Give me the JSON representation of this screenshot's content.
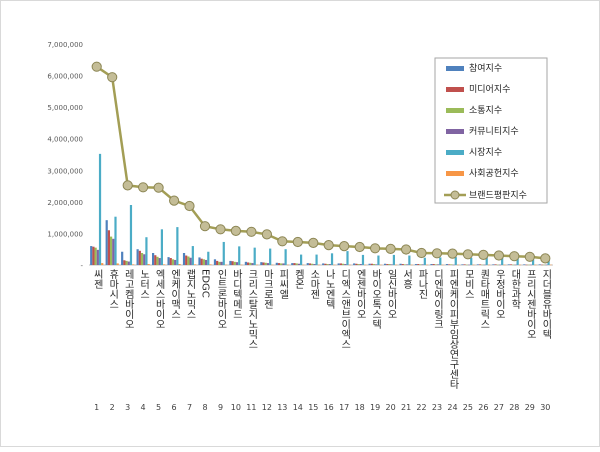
{
  "chart_data": {
    "type": "bar",
    "categories": [
      "씨젠",
      "휴마시스",
      "레고켐바이오",
      "노터스",
      "엑세스바이오",
      "엔케이맥스",
      "랩지노믹스",
      "EDGC",
      "인트론바이오",
      "바디텍메드",
      "크리스탈지노믹스",
      "마크로젠",
      "피씨엘",
      "켐온",
      "소마젠",
      "나노엔텍",
      "디엑스앤브이엑스",
      "엔젠바이오",
      "바이오톡스텍",
      "일신바이오",
      "서흥",
      "파나진",
      "디엔에이링크",
      "피엔케이피부임상연구센타",
      "모비스",
      "퀀타매트릭스",
      "우정바이오",
      "대한과학",
      "프리시젠바이오",
      "지더블유바이텍"
    ],
    "ranks": [
      "1",
      "2",
      "3",
      "4",
      "5",
      "6",
      "7",
      "8",
      "9",
      "10",
      "11",
      "12",
      "13",
      "14",
      "15",
      "16",
      "17",
      "18",
      "19",
      "20",
      "21",
      "22",
      "23",
      "24",
      "25",
      "26",
      "27",
      "28",
      "29",
      "30"
    ],
    "series": [
      {
        "name": "참여지수",
        "color": "#4F81BD",
        "values": [
          600000,
          1420000,
          420000,
          500000,
          380000,
          250000,
          380000,
          240000,
          180000,
          130000,
          100000,
          90000,
          70000,
          60000,
          60000,
          50000,
          50000,
          50000,
          40000,
          40000,
          40000,
          30000,
          30000,
          30000,
          20000,
          20000,
          20000,
          20000,
          20000,
          20000
        ]
      },
      {
        "name": "미디어지수",
        "color": "#C0504D",
        "values": [
          580000,
          1100000,
          150000,
          450000,
          310000,
          220000,
          300000,
          200000,
          130000,
          120000,
          80000,
          80000,
          60000,
          60000,
          50000,
          40000,
          50000,
          40000,
          40000,
          30000,
          30000,
          30000,
          30000,
          20000,
          20000,
          20000,
          20000,
          20000,
          10000,
          10000
        ]
      },
      {
        "name": "소통지수",
        "color": "#9BBB59",
        "values": [
          550000,
          900000,
          130000,
          380000,
          260000,
          180000,
          270000,
          180000,
          100000,
          100000,
          70000,
          70000,
          50000,
          50000,
          40000,
          30000,
          40000,
          30000,
          30000,
          30000,
          20000,
          20000,
          20000,
          20000,
          10000,
          10000,
          10000,
          10000,
          10000,
          10000
        ]
      },
      {
        "name": "커뮤니티지수",
        "color": "#8064A2",
        "values": [
          480000,
          830000,
          110000,
          340000,
          220000,
          160000,
          230000,
          160000,
          100000,
          90000,
          60000,
          60000,
          50000,
          40000,
          30000,
          30000,
          30000,
          30000,
          20000,
          20000,
          20000,
          20000,
          20000,
          10000,
          10000,
          10000,
          10000,
          10000,
          10000,
          10000
        ]
      },
      {
        "name": "시장지수",
        "color": "#4BACC6",
        "values": [
          3520000,
          1530000,
          1900000,
          880000,
          1130000,
          1200000,
          600000,
          420000,
          730000,
          590000,
          550000,
          520000,
          500000,
          330000,
          330000,
          370000,
          440000,
          320000,
          300000,
          320000,
          300000,
          230000,
          240000,
          250000,
          230000,
          240000,
          230000,
          240000,
          210000,
          220000
        ]
      },
      {
        "name": "사회공헌지수",
        "color": "#F79646",
        "values": [
          60000,
          50000,
          20000,
          30000,
          20000,
          30000,
          20000,
          20000,
          10000,
          10000,
          10000,
          10000,
          10000,
          10000,
          10000,
          10000,
          10000,
          10000,
          10000,
          10000,
          10000,
          10000,
          10000,
          10000,
          10000,
          10000,
          10000,
          10000,
          10000,
          10000
        ]
      }
    ],
    "line": {
      "name": "브랜드평판지수",
      "color": "#A39E55",
      "values": [
        6280000,
        5950000,
        2520000,
        2460000,
        2450000,
        2040000,
        1870000,
        1230000,
        1130000,
        1080000,
        1050000,
        970000,
        750000,
        730000,
        700000,
        630000,
        600000,
        570000,
        530000,
        510000,
        490000,
        380000,
        370000,
        360000,
        340000,
        320000,
        300000,
        280000,
        260000,
        210000
      ]
    },
    "yticks": [
      "-",
      "1,000,000",
      "2,000,000",
      "3,000,000",
      "4,000,000",
      "5,000,000",
      "6,000,000",
      "7,000,000"
    ],
    "ylim": [
      0,
      7000000
    ],
    "legend_position": "right",
    "grid": false
  }
}
